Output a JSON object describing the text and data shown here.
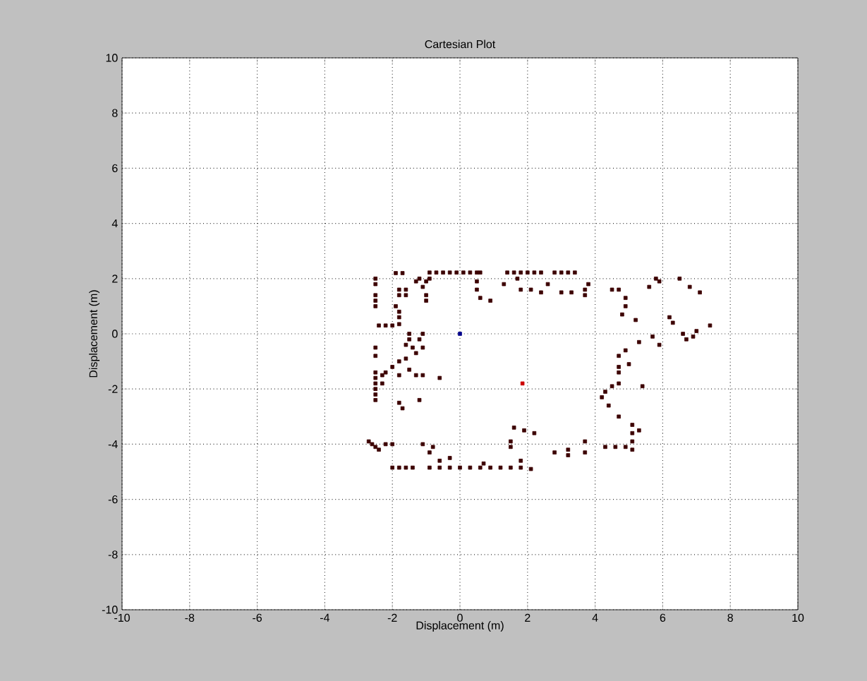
{
  "chart_data": {
    "type": "scatter",
    "title": "Cartesian Plot",
    "xlabel": "Displacement (m)",
    "ylabel": "Displacement (m)",
    "xlim": [
      -10,
      10
    ],
    "ylim": [
      -10,
      10
    ],
    "xticks": [
      -10,
      -8,
      -6,
      -4,
      -2,
      0,
      2,
      4,
      6,
      8,
      10
    ],
    "yticks": [
      -10,
      -8,
      -6,
      -4,
      -2,
      0,
      2,
      4,
      6,
      8,
      10
    ],
    "grid": true,
    "marker": "square",
    "series": [
      {
        "color": "#3c0000",
        "x": [
          -0.9,
          -0.7,
          -0.5,
          -0.3,
          -0.1,
          0.1,
          0.3,
          0.5,
          0.6,
          1.4,
          1.6,
          1.8,
          2.0,
          2.2,
          2.4,
          2.8,
          3.0,
          3.2,
          3.4,
          -1.9,
          -1.7,
          -2.5,
          -2.5,
          -2.5,
          -2.5,
          -2.5,
          -2.5,
          -2.5,
          -2.5,
          -2.5,
          -2.5,
          -2.5,
          -2.5,
          -2.5,
          -2.6,
          -2.5,
          -2.4,
          -2.4,
          -2.2,
          -2.0,
          -1.8,
          -1.8,
          -1.8,
          -1.9,
          -1.8,
          -1.6,
          -1.8,
          -1.6,
          -1.2,
          -1.0,
          -0.9,
          -1.1,
          -1.0,
          -1.0,
          -1.3,
          -1.5,
          -1.5,
          -1.6,
          -1.4,
          -1.3,
          -1.1,
          -1.2,
          -1.1,
          -1.6,
          -1.8,
          -2.0,
          -2.2,
          -2.3,
          -1.8,
          -1.5,
          -1.3,
          -1.1,
          -0.6,
          -2.3,
          -1.8,
          -1.7,
          -1.2,
          -2.0,
          -1.8,
          -1.6,
          -1.4,
          -0.9,
          -0.6,
          -0.3,
          0.0,
          0.3,
          0.6,
          0.9,
          1.2,
          1.5,
          1.8,
          2.1,
          -1.1,
          -0.8,
          -0.9,
          -0.3,
          -0.6,
          -2.2,
          -2.0,
          -2.7,
          0.7,
          1.8,
          1.6,
          1.9,
          2.2,
          1.5,
          1.5,
          0.5,
          0.5,
          0.6,
          0.9,
          1.3,
          1.7,
          1.8,
          2.1,
          2.6,
          2.4,
          3.0,
          3.3,
          3.7,
          3.7,
          3.8,
          4.5,
          4.7,
          4.9,
          4.9,
          4.8,
          5.2,
          5.6,
          5.9,
          5.8,
          6.5,
          6.8,
          7.1,
          6.2,
          6.3,
          6.6,
          6.9,
          7.0,
          7.4,
          6.7,
          5.3,
          5.9,
          5.7,
          4.9,
          4.7,
          4.7,
          4.7,
          5.0,
          4.7,
          4.5,
          4.3,
          4.2,
          5.4,
          4.4,
          4.7,
          5.1,
          5.1,
          5.1,
          5.1,
          4.3,
          4.6,
          4.9,
          5.3,
          2.8,
          3.2,
          3.2,
          3.7,
          3.7
        ],
        "values": [
          2.22,
          2.22,
          2.22,
          2.22,
          2.22,
          2.22,
          2.22,
          2.22,
          2.22,
          2.22,
          2.22,
          2.22,
          2.22,
          2.22,
          2.22,
          2.22,
          2.22,
          2.22,
          2.22,
          2.2,
          2.2,
          2.0,
          1.8,
          1.4,
          1.2,
          1.0,
          -0.5,
          -0.8,
          -1.4,
          -1.6,
          -1.8,
          -2.0,
          -2.2,
          -2.4,
          -4.0,
          -4.1,
          -4.2,
          0.3,
          0.3,
          0.3,
          0.35,
          0.6,
          0.8,
          1.0,
          1.4,
          1.4,
          1.6,
          1.6,
          2.0,
          1.9,
          2.0,
          1.7,
          1.4,
          1.2,
          1.9,
          0.0,
          -0.2,
          -0.4,
          -0.5,
          -0.7,
          -0.5,
          -0.2,
          0.0,
          -0.9,
          -1.0,
          -1.2,
          -1.4,
          -1.5,
          -1.5,
          -1.3,
          -1.5,
          -1.5,
          -1.6,
          -1.8,
          -2.5,
          -2.7,
          -2.4,
          -4.85,
          -4.85,
          -4.85,
          -4.85,
          -4.85,
          -4.85,
          -4.85,
          -4.85,
          -4.85,
          -4.85,
          -4.85,
          -4.85,
          -4.85,
          -4.85,
          -4.9,
          -4.0,
          -4.1,
          -4.3,
          -4.5,
          -4.6,
          -4.0,
          -4.0,
          -3.9,
          -4.7,
          -4.6,
          -3.4,
          -3.5,
          -3.6,
          -3.9,
          -4.1,
          1.9,
          1.6,
          1.3,
          1.2,
          1.8,
          2.0,
          1.6,
          1.6,
          1.8,
          1.5,
          1.5,
          1.5,
          1.6,
          1.4,
          1.8,
          1.6,
          1.6,
          1.3,
          1.0,
          0.7,
          0.5,
          1.7,
          1.9,
          2.0,
          2.0,
          1.7,
          1.5,
          0.6,
          0.4,
          0.0,
          -0.1,
          0.1,
          0.3,
          -0.2,
          -0.3,
          -0.4,
          -0.1,
          -0.6,
          -0.8,
          -1.2,
          -1.4,
          -1.1,
          -1.8,
          -1.9,
          -2.1,
          -2.3,
          -1.9,
          -2.6,
          -3.0,
          -3.3,
          -3.6,
          -3.9,
          -4.2,
          -4.1,
          -4.1,
          -4.1,
          -3.5,
          -4.3,
          -4.2,
          -4.4,
          -3.9,
          -4.3
        ]
      },
      {
        "color": "#00008b",
        "x": [
          0.0
        ],
        "values": [
          0.0
        ]
      },
      {
        "color": "#cc0000",
        "x": [
          1.85
        ],
        "values": [
          -1.8
        ]
      }
    ]
  }
}
